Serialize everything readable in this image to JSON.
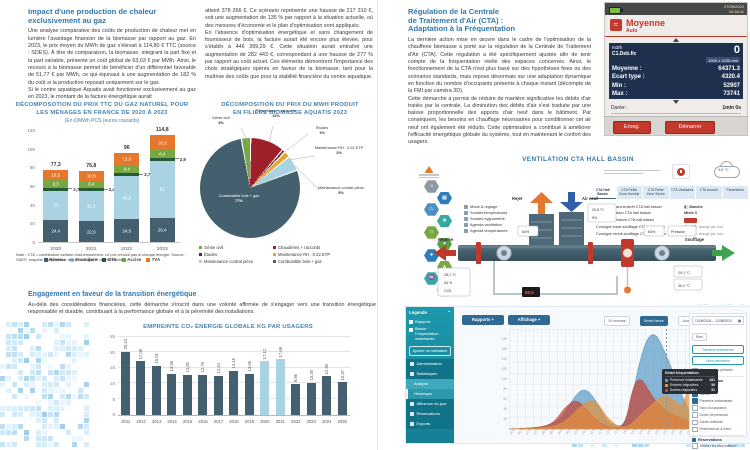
{
  "left": {
    "article": {
      "title": "Impact d'une production de chaleur\nexclusivement au gaz",
      "col1": "Une analyse comparative des coûts de production de chaleur met en lumière l'avantage financier de la biomasse par rapport au gaz. En 2023, le prix moyen du MWh de gaz s'élevait à 114,80 € TTC (source : SDES). À titre de comparaison, la biomasse, intégrant la part fixe et la part variable, présente un coût global de 63,03 € par MWh. Ainsi, le recours à la biomasse permet de bénéficier d'un différentiel favorable de 51,77 € par MWh, ce qui équivaut à une augmentation de 182 % du coût si la production reposait uniquement sur le gaz.\nSi le centre aquatique Aquatis avait fonctionné exclusivement au gaz en 2023, le montant de la facture énergétique aurait",
      "col2": "atteint 378 266 €. Ce scénario représente une hausse de 217 310 €, soit une augmentation de 135 % par rapport à la situation actuelle, où des mesures d'économie et le plan d'optimisation sont appliqués.\nEn l'absence d'optimisation énergétique et sans changement de fournisseur de bois, la facture aurait été encore plus élevée, pour s'établir à 446 399,29 €. Cette situation aurait entraîné une augmentation de 282 443 €, correspondant à une hausse de 277 % par rapport au coût actuel. Ces éléments démontrent l'importance des choix stratégiques opérés en faveur de la biomasse, tant pour la maîtrise des coûts que pour la stabilité financière du centre aquatique."
    },
    "note": "Note : CTA = contribution tarifaire d'acheminement. Le prix n'inclut pas le chèque énergie.\nSource : SDES, enquête transparence des prix du gaz et de l'électricité.",
    "engagement": {
      "title": "Engagement en faveur de la transition énergétique",
      "body": "Au-delà des considérations financières, cette démarche s'inscrit dans une volonté affirmée de s'engager vers une transition énergétique responsable et durable, contribuant à la performance globale et à la pérennité des installations."
    }
  },
  "right": {
    "article": {
      "title": "Régulation de la Centrale\nde Traitement d'Air (CTA) :\nAdaptation à la Fréquentation",
      "body": "La dernière action mise en œuvre dans le cadre de l'optimisation de la chaufferie biomasse a porté sur la régulation de la Centrale de Traitement d'Air (CTA). Cette régulation a été spécifiquement ajustée afin de tenir compte de la fréquentation réelle des espaces concernés. Ainsi, le fonctionnement de la CTA n'est plus basé sur des hypothèses fixes ou des scénarios standards, mais repose désormais sur une adaptation dynamique en fonction du nombre d'occupants présents à chaque instant (décompte de la FMI par caméra 3D).\nCette démarche a permis de réduire de manière significative les débits d'air traités par la centrale. La diminution des débits d'air s'est traduite par une baisse proportionnelle des apports d'air neuf dans le bâtiment. Par conséquent, les besoins en chauffage nécessaires pour conditionner cet air neuf ont également été réduits. Cette optimisation a contribué à améliorer l'efficacité énergétique globale du système, tout en maintenant le confort des usagers."
    },
    "device": {
      "date": "27/09/2022",
      "time": "10:28:11",
      "title": "Moyenne",
      "mode": "Auto",
      "unit": "m3/h",
      "channel": "C1.Deb.fic",
      "count": "0",
      "size": "1300 x 1200 mm",
      "rows": [
        {
          "label": "Moyenne :",
          "value": "64371.3"
        },
        {
          "label": "Ecart type :",
          "value": "4320.4"
        },
        {
          "label": "Min :",
          "value": "52907"
        },
        {
          "label": "Max :",
          "value": "73741"
        }
      ],
      "duration_label": "Durée :",
      "duration_value": "1min 0s",
      "buttons": [
        "Enreg.",
        "Démarrer"
      ]
    },
    "bms": {
      "title": "VENTILATION CTA HALL BASSIN",
      "tabs": [
        "CTA Hall Bassin",
        "CTA Petite Zone Humide",
        "CTA Petite Zone Sèche",
        "CTA Vestiaires",
        "CTA Accueil",
        "Paramètres"
      ],
      "weather": "9,6 °C",
      "legend": [
        "Mode & réglage",
        "Sondes températures",
        "Sondes hygrométrie",
        "Agenda ventilation",
        "Agenda températures"
      ],
      "flows": {
        "reprise": "Reprise",
        "rejet": "Rejet",
        "air_neuf": "Air neuf",
        "soufflage": "Soufflage"
      },
      "settings": [
        {
          "label": "Consigne marche/arrêt CTA hall bassin",
          "value": "Marche",
          "icon": true
        },
        {
          "label": "Mode ventilation CTA hall bassin",
          "value": "Mixte 3"
        },
        {
          "label": "Mode température CTA hall bassin",
          "value": "",
          "chip": true
        },
        {
          "label": "Consigne base soufflage CTA hall bassin",
          "value": "31,0 °C",
          "suffix": "changé par Just"
        },
        {
          "label": "Consigne réduit soufflage CTA hall bassin",
          "value": "30,8 °C",
          "suffix": "changé par Just"
        }
      ],
      "sensors": {
        "box_left": [
          "28,1 °C",
          "54 %",
          "CO2"
        ],
        "duct1": "64%",
        "stack": [
          "20,8 °C",
          "5%"
        ],
        "duct2": "64%",
        "pression": "Pression",
        "right1": "29,1 °C",
        "right2": "30,2 °C",
        "display": "88.8"
      }
    },
    "webapp": {
      "sidebar": {
        "header": "Légende",
        "items": [
          "Rapports",
          "Bassin · Fréquentation instantanée"
        ],
        "button": "Ajouter un indicateur",
        "menu": [
          {
            "label": "Administration",
            "style": "dark"
          },
          {
            "label": "Statistiques",
            "style": "dark"
          },
          {
            "label": "Analyse",
            "style": "sub"
          },
          {
            "label": "Historique",
            "style": "active"
          },
          {
            "label": "Affluence du jour",
            "style": "dark"
          },
          {
            "label": "Réservations",
            "style": "dark"
          },
          {
            "label": "Exports",
            "style": "dark"
          }
        ]
      },
      "toolbar": {
        "left_buttons": [
          "Rapports +",
          "Affichage +"
        ],
        "chips": [
          {
            "label": "15 minutes",
            "on": false
          },
          {
            "label": "Smart heure",
            "on": true
          },
          {
            "label": "Jour",
            "on": false
          },
          {
            "label": "Semaine",
            "on": false
          }
        ]
      },
      "panel": {
        "date_range": "12/08/2024 – 12/08/2024",
        "chip": "Réel",
        "buttons": [
          "Semaine précédente",
          "Mois précédent"
        ],
        "compare": "Comparer les périodes",
        "sections": [
          {
            "title": "Fréquentation",
            "checked": [
              "Entrées",
              "Sorties",
              "Présence instantanée"
            ],
            "unchecked": [
              "Taux d'occupation",
              "Durée de présence",
              "Zones d'attente",
              "Réservations & évén."
            ]
          },
          {
            "title": "Réservations",
            "checked": [],
            "unchecked": [
              "Afficher les réservations",
              "Personnel"
            ]
          }
        ]
      },
      "tooltip": {
        "title": "Détail fréquentation",
        "rows": [
          {
            "color": "#5b9bc8",
            "label": "Présence instantanée",
            "value": "481"
          },
          {
            "color": "#e2923f",
            "label": "Entrées réajustées",
            "value": "56"
          },
          {
            "color": "#c44536",
            "label": "Sorties réajustées",
            "value": "51"
          }
        ]
      }
    }
  },
  "chart_data": [
    {
      "id": "gas_price",
      "type": "bar",
      "stacked": true,
      "title": "DÉCOMPOSOTION DU PRIX TTC DU GAZ NATUREL POUR LES MÉNAGES EN FRANCE DE 2020 À 2023",
      "subtitle": "(En €/MWh PCS (euros courants)",
      "categories": [
        "2020",
        "2021",
        "2022",
        "2023"
      ],
      "series": [
        {
          "name": "Réseau",
          "color": "#44606e",
          "values": [
            24.4,
            22.9,
            24.5,
            26.4
          ],
          "labels": [
            "24,4",
            "22,9",
            "24,5",
            "26,4"
          ]
        },
        {
          "name": "Fourniture",
          "color": "#a9d3e2",
          "values": [
            31,
            32.5,
            46.8,
            61
          ],
          "labels": [
            "31",
            "32,5",
            "46,8",
            "61"
          ]
        },
        {
          "name": "CTA",
          "color": "#235c36",
          "values": [
            2.7,
            2.4,
            2.7,
            2.9
          ],
          "labels": [
            "2,7",
            "2,4",
            "2,7",
            "2,9"
          ],
          "callout": true
        },
        {
          "name": "Accise",
          "color": "#79a843",
          "values": [
            8.5,
            8.4,
            8.4,
            8.4
          ],
          "labels": [
            "8,5",
            "8,4",
            "8,4",
            "8,4"
          ]
        },
        {
          "name": "TVA",
          "color": "#e5782c",
          "values": [
            10.5,
            10.6,
            13.6,
            16.3
          ],
          "labels": [
            "10,5",
            "10,6",
            "13,6",
            "16,3"
          ]
        }
      ],
      "totals": [
        "77,3",
        "76,8",
        "96",
        "114,8"
      ],
      "ylim": [
        0,
        120
      ],
      "yticks": [
        0,
        20,
        40,
        60,
        80,
        100,
        120
      ],
      "legend_position": "bottom"
    },
    {
      "id": "biomass_mwh_price",
      "type": "pie",
      "title": "DÉCOMPOSITION DU PRIX DU MWH PRODUIT\nEN FILIÈRE BIOMASSE AQUATIS 2023",
      "slices": [
        {
          "label": "Génie civil",
          "pct": 3,
          "pct_label": "3%",
          "color": "#79a843"
        },
        {
          "label": "Chaudières + raccords",
          "pct": 11,
          "pct_label": "11%",
          "color": "#9e2028"
        },
        {
          "label": "Études",
          "pct": 1,
          "pct_label": "1%",
          "color": "#7c1a22"
        },
        {
          "label": "Maintenance RH : 0,22 ETP",
          "pct": 2,
          "pct_label": "2%",
          "color": "#e7a52e"
        },
        {
          "label": "Maintenance contrat pièce",
          "pct": 5,
          "pct_label": "5%",
          "color": "#a9d3e2"
        },
        {
          "label": "Combustible bois + gaz",
          "pct": 77,
          "pct_label": "77%",
          "color": "#44606e"
        }
      ]
    },
    {
      "id": "co2_footprint",
      "type": "bar",
      "title": "EMPREINTE CO₂ ÉNERGIE GLOBALE KG  PAR USAGERS",
      "categories": [
        "2011",
        "2012",
        "2013",
        "2014",
        "2015",
        "2016",
        "2017",
        "2018",
        "2019",
        "2020",
        "2021",
        "2022",
        "2023",
        "2024",
        "2025"
      ],
      "values": [
        20.13,
        17.08,
        15.61,
        13.09,
        12.82,
        12.76,
        12.44,
        14.15,
        13.06,
        17.12,
        17.69,
        9.85,
        10.26,
        12.35,
        10.37
      ],
      "labels": [
        "20,13",
        "17,08",
        "15,61",
        "13,09",
        "12,82",
        "12,76",
        "12,44",
        "14,15",
        "13,06",
        "17,12",
        "17,69",
        "9,85",
        "10,26",
        "12,35",
        "10,37"
      ],
      "highlight_years": [
        "2020",
        "2021"
      ],
      "bar_color": "#44606e",
      "highlight_color": "#a9d3e2",
      "ylim": [
        0,
        25
      ],
      "yticks": [
        0,
        5,
        10,
        15,
        20,
        25
      ],
      "grid": true
    },
    {
      "id": "affluence_day",
      "type": "area",
      "estimated": true,
      "ylim": [
        0,
        200
      ],
      "yticks": [
        20,
        40,
        60,
        80,
        100,
        120,
        140,
        160,
        180
      ],
      "x_start": "06:00",
      "x_step_minutes": 15,
      "x_slots": 57,
      "series": [
        {
          "name": "Présence instantanée",
          "color": "#5b9bc8",
          "points": [
            [
              0,
              0
            ],
            [
              6,
              1
            ],
            [
              10,
              3
            ],
            [
              14,
              10
            ],
            [
              17,
              30
            ],
            [
              20,
              42
            ],
            [
              23,
              30
            ],
            [
              26,
              8
            ],
            [
              29,
              2
            ],
            [
              31,
              6
            ],
            [
              33,
              35
            ],
            [
              35,
              70
            ],
            [
              37,
              92
            ],
            [
              39,
              96
            ],
            [
              41,
              82
            ],
            [
              44,
              55
            ],
            [
              47,
              25
            ],
            [
              49,
              12
            ],
            [
              51,
              22
            ],
            [
              53,
              8
            ],
            [
              56,
              2
            ],
            [
              60,
              0
            ]
          ]
        },
        {
          "name": "Sorties réajustées",
          "color": "#c44536",
          "points": [
            [
              0,
              0
            ],
            [
              8,
              1
            ],
            [
              12,
              6
            ],
            [
              15,
              22
            ],
            [
              18,
              30
            ],
            [
              21,
              18
            ],
            [
              24,
              6
            ],
            [
              28,
              1
            ],
            [
              31,
              3
            ],
            [
              33,
              42
            ],
            [
              35,
              52
            ],
            [
              37,
              40
            ],
            [
              39,
              28
            ],
            [
              42,
              18
            ],
            [
              45,
              12
            ],
            [
              48,
              8
            ],
            [
              50,
              3
            ],
            [
              54,
              1
            ],
            [
              60,
              0
            ]
          ]
        },
        {
          "name": "Entrées réajustées",
          "color": "#e2923f",
          "points": [
            [
              0,
              0
            ],
            [
              10,
              1
            ],
            [
              14,
              5
            ],
            [
              17,
              14
            ],
            [
              20,
              26
            ],
            [
              23,
              30
            ],
            [
              26,
              12
            ],
            [
              29,
              2
            ],
            [
              32,
              2
            ],
            [
              35,
              14
            ],
            [
              38,
              24
            ],
            [
              41,
              34
            ],
            [
              44,
              30
            ],
            [
              46,
              20
            ],
            [
              48,
              42
            ],
            [
              50,
              46
            ],
            [
              52,
              14
            ],
            [
              55,
              3
            ],
            [
              60,
              0
            ]
          ]
        }
      ]
    }
  ]
}
